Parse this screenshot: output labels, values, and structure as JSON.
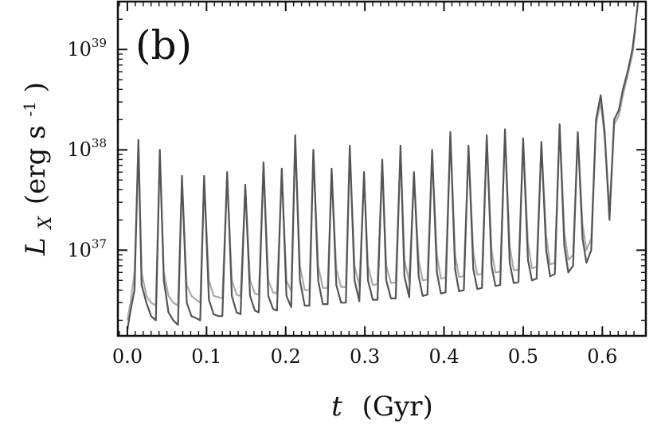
{
  "chart_data": {
    "type": "line",
    "panel_label": "(b)",
    "xlabel": {
      "var": "t",
      "unit": "(Gyr)"
    },
    "ylabel": {
      "var": "L",
      "sub": "X",
      "unit": "(erg s",
      "exp": "-1",
      "close": ")"
    },
    "yscale": "log",
    "xlim": [
      -0.012,
      0.655
    ],
    "ylim": [
      1.4e+36,
      3e+39
    ],
    "x_ticks": [
      "0.0",
      "0.1",
      "0.2",
      "0.3",
      "0.4",
      "0.5",
      "0.6"
    ],
    "x_tick_values": [
      0.0,
      0.1,
      0.2,
      0.3,
      0.4,
      0.5,
      0.6
    ],
    "y_ticks": [
      {
        "base": "10",
        "exp": "37",
        "value": 1e+37
      },
      {
        "base": "10",
        "exp": "38",
        "value": 1e+38
      },
      {
        "base": "10",
        "exp": "39",
        "value": 1e+39
      }
    ],
    "grid": false,
    "series": [
      {
        "color": "#555555",
        "x": [
          0.0,
          0.004,
          0.009,
          0.014,
          0.018,
          0.024,
          0.03,
          0.036,
          0.041,
          0.046,
          0.052,
          0.058,
          0.064,
          0.069,
          0.075,
          0.081,
          0.087,
          0.092,
          0.097,
          0.103,
          0.109,
          0.115,
          0.12,
          0.126,
          0.132,
          0.138,
          0.143,
          0.149,
          0.155,
          0.161,
          0.166,
          0.172,
          0.178,
          0.184,
          0.189,
          0.195,
          0.201,
          0.207,
          0.212,
          0.218,
          0.224,
          0.23,
          0.235,
          0.241,
          0.247,
          0.253,
          0.258,
          0.264,
          0.27,
          0.276,
          0.281,
          0.287,
          0.293,
          0.299,
          0.304,
          0.31,
          0.316,
          0.322,
          0.327,
          0.333,
          0.339,
          0.345,
          0.35,
          0.356,
          0.362,
          0.368,
          0.373,
          0.379,
          0.385,
          0.391,
          0.396,
          0.402,
          0.408,
          0.414,
          0.419,
          0.425,
          0.431,
          0.437,
          0.442,
          0.448,
          0.454,
          0.46,
          0.465,
          0.471,
          0.477,
          0.483,
          0.488,
          0.494,
          0.5,
          0.506,
          0.511,
          0.517,
          0.523,
          0.529,
          0.534,
          0.54,
          0.546,
          0.552,
          0.557,
          0.563,
          0.569,
          0.575,
          0.58,
          0.586,
          0.592,
          0.598,
          0.603,
          0.609,
          0.615,
          0.621,
          0.626,
          0.632,
          0.638,
          0.642,
          0.645
        ],
        "y": [
          1.6e+36,
          2.5e+36,
          4e+36,
          1.25e+38,
          4.5e+36,
          3e+36,
          2.2e+36,
          2e+36,
          1e+38,
          5e+36,
          2.4e+36,
          2e+36,
          1.8e+36,
          5.5e+37,
          3e+36,
          2.2e+36,
          2.1e+36,
          2e+36,
          5.5e+37,
          3.2e+36,
          2.3e+36,
          2.2e+36,
          2.2e+36,
          6e+37,
          3.5e+36,
          2.4e+36,
          2.3e+36,
          4.5e+37,
          3.5e+36,
          2.5e+36,
          2.4e+36,
          7.5e+37,
          3.5e+36,
          2.6e+36,
          2.5e+36,
          6.5e+37,
          3.5e+36,
          2.7e+36,
          1.4e+38,
          5e+36,
          2.8e+36,
          2.8e+36,
          1e+38,
          5e+36,
          2.9e+36,
          2.9e+36,
          6.5e+37,
          4.5e+36,
          3e+36,
          3e+36,
          1.1e+38,
          5e+36,
          3.1e+36,
          6e+37,
          5e+36,
          3.2e+36,
          3.2e+36,
          8e+37,
          5e+36,
          3.3e+36,
          3.3e+36,
          1.1e+38,
          5.5e+36,
          3.4e+36,
          6e+37,
          5.5e+36,
          3.5e+36,
          3.6e+36,
          1e+38,
          6e+36,
          3.7e+36,
          3.8e+36,
          1.5e+38,
          6.5e+36,
          3.9e+36,
          4e+36,
          1.1e+38,
          6.5e+36,
          4.1e+36,
          4.2e+36,
          1.4e+38,
          7e+36,
          4.4e+36,
          4.5e+36,
          1.6e+38,
          7.5e+36,
          4.7e+36,
          4.8e+36,
          1.3e+38,
          8e+36,
          5e+36,
          5.2e+36,
          1.2e+38,
          1e+37,
          5.5e+36,
          5.8e+36,
          1.8e+38,
          1.1e+37,
          6e+36,
          7e+36,
          1.5e+38,
          1.3e+37,
          7.5e+36,
          1e+37,
          2e+38,
          3.5e+38,
          1.5e+38,
          2e+37,
          2e+38,
          2.5e+38,
          4e+38,
          6e+38,
          1e+39,
          1.8e+39,
          3e+39
        ]
      },
      {
        "color": "#aaaaaa",
        "x": [
          0.0,
          0.004,
          0.009,
          0.014,
          0.018,
          0.024,
          0.03,
          0.036,
          0.041,
          0.046,
          0.052,
          0.058,
          0.064,
          0.069,
          0.075,
          0.081,
          0.087,
          0.092,
          0.097,
          0.103,
          0.109,
          0.115,
          0.12,
          0.126,
          0.132,
          0.138,
          0.143,
          0.149,
          0.155,
          0.161,
          0.166,
          0.172,
          0.178,
          0.184,
          0.189,
          0.195,
          0.201,
          0.207,
          0.212,
          0.218,
          0.224,
          0.23,
          0.235,
          0.241,
          0.247,
          0.253,
          0.258,
          0.264,
          0.27,
          0.276,
          0.281,
          0.287,
          0.293,
          0.299,
          0.304,
          0.31,
          0.316,
          0.322,
          0.327,
          0.333,
          0.339,
          0.345,
          0.35,
          0.356,
          0.362,
          0.368,
          0.373,
          0.379,
          0.385,
          0.391,
          0.396,
          0.402,
          0.408,
          0.414,
          0.419,
          0.425,
          0.431,
          0.437,
          0.442,
          0.448,
          0.454,
          0.46,
          0.465,
          0.471,
          0.477,
          0.483,
          0.488,
          0.494,
          0.5,
          0.506,
          0.511,
          0.517,
          0.523,
          0.529,
          0.534,
          0.54,
          0.546,
          0.552,
          0.557,
          0.563,
          0.569,
          0.575,
          0.58,
          0.586,
          0.592,
          0.598,
          0.603,
          0.609,
          0.615,
          0.621,
          0.626,
          0.632,
          0.638,
          0.642
        ],
        "y": [
          2e+36,
          3e+36,
          6e+36,
          1.1e+38,
          6e+36,
          3.5e+36,
          3e+36,
          2.8e+36,
          9e+37,
          6e+36,
          3.5e+36,
          3e+36,
          2.8e+36,
          5e+37,
          4.5e+36,
          3.5e+36,
          3.2e+36,
          3e+36,
          5e+37,
          5e+36,
          3.5e+36,
          3.4e+36,
          3.3e+36,
          5.5e+37,
          5e+36,
          3.6e+36,
          3.5e+36,
          4.2e+37,
          5e+36,
          3.7e+36,
          3.6e+36,
          7e+37,
          5e+36,
          3.8e+36,
          3.7e+36,
          6e+37,
          5e+36,
          3.9e+36,
          1.3e+38,
          7e+36,
          4e+36,
          4e+36,
          9.5e+37,
          7e+36,
          4.2e+36,
          4.2e+36,
          6e+37,
          6.5e+36,
          4.3e+36,
          4.3e+36,
          1e+38,
          7e+36,
          4.4e+36,
          5.5e+37,
          7e+36,
          4.5e+36,
          4.6e+36,
          7.5e+37,
          7e+36,
          4.7e+36,
          4.8e+36,
          1e+38,
          8e+36,
          4.9e+36,
          5.5e+37,
          8e+36,
          5e+36,
          5.1e+36,
          9e+37,
          9e+36,
          5.2e+36,
          5.3e+36,
          1.4e+38,
          9e+36,
          5.4e+36,
          5.5e+36,
          1e+38,
          9.5e+36,
          5.7e+36,
          5.8e+36,
          1.3e+38,
          1e+37,
          6e+36,
          6.1e+36,
          1.5e+38,
          1.1e+37,
          6.3e+36,
          6.4e+36,
          1.2e+38,
          1.2e+37,
          6.6e+36,
          6.8e+36,
          1.1e+38,
          1.4e+37,
          7.2e+36,
          7.5e+36,
          1.7e+38,
          1.5e+37,
          8e+36,
          9e+36,
          1.4e+38,
          1.8e+37,
          1e+37,
          1.3e+37,
          1.8e+38,
          3e+38,
          1.3e+38,
          2.5e+37,
          1.8e+38,
          2.2e+38,
          3.5e+38,
          5.5e+38,
          9e+38,
          1.6e+39
        ]
      }
    ]
  }
}
